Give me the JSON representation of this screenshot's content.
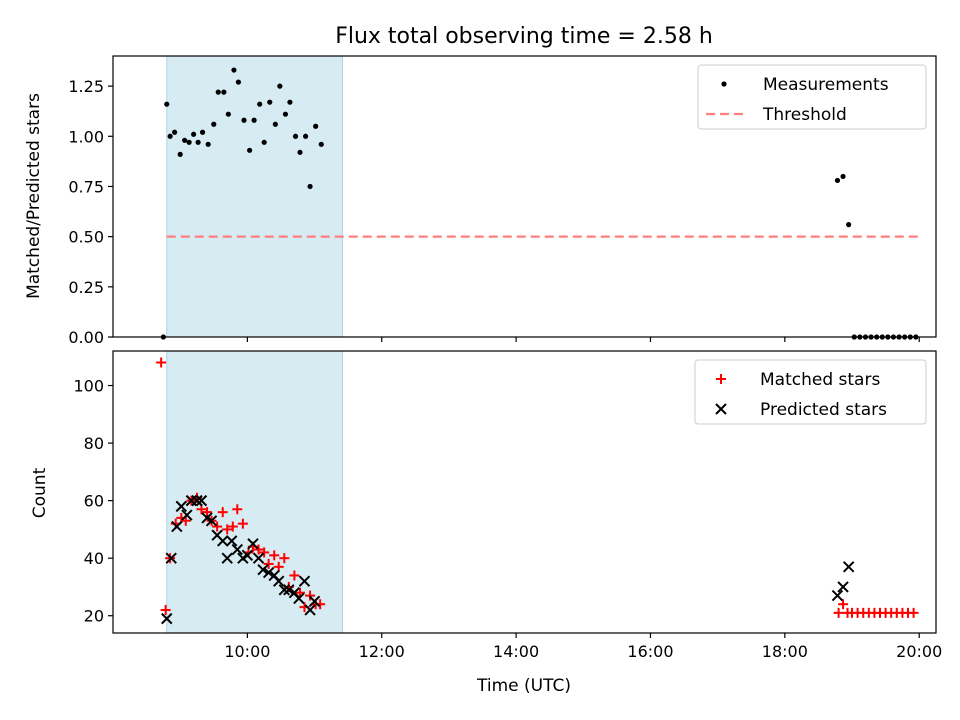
{
  "figure": {
    "title": "Flux total observing time = 2.58 h",
    "shaded_interval": {
      "start": "08:48",
      "end": "11:25",
      "color": "#add8e6"
    }
  },
  "chart_data": [
    {
      "type": "scatter",
      "ylabel": "Matched/Predicted stars",
      "xlabel": "",
      "ylim": [
        0,
        1.4
      ],
      "yticks": [
        0,
        0.25,
        0.5,
        0.75,
        1.0,
        1.25
      ],
      "ytick_labels": [
        "0.00",
        "0.25",
        "0.50",
        "0.75",
        "1.00",
        "1.25"
      ],
      "xticks": [
        "10:00",
        "12:00",
        "14:00",
        "16:00",
        "18:00",
        "20:00"
      ],
      "xtick_labels_visible": false,
      "legend_position": "top-right",
      "series": [
        {
          "name": "Measurements",
          "marker": "dot",
          "color": "#000000",
          "points": [
            [
              "08:45",
              0.0
            ],
            [
              "08:48",
              1.16
            ],
            [
              "08:51",
              1.0
            ],
            [
              "08:55",
              1.02
            ],
            [
              "09:00",
              0.91
            ],
            [
              "09:04",
              0.98
            ],
            [
              "09:08",
              0.97
            ],
            [
              "09:12",
              1.01
            ],
            [
              "09:16",
              0.97
            ],
            [
              "09:20",
              1.02
            ],
            [
              "09:25",
              0.96
            ],
            [
              "09:30",
              1.06
            ],
            [
              "09:34",
              1.22
            ],
            [
              "09:39",
              1.22
            ],
            [
              "09:43",
              1.11
            ],
            [
              "09:48",
              1.33
            ],
            [
              "09:52",
              1.27
            ],
            [
              "09:57",
              1.08
            ],
            [
              "10:02",
              0.93
            ],
            [
              "10:06",
              1.08
            ],
            [
              "10:11",
              1.16
            ],
            [
              "10:15",
              0.97
            ],
            [
              "10:20",
              1.17
            ],
            [
              "10:25",
              1.06
            ],
            [
              "10:29",
              1.25
            ],
            [
              "10:34",
              1.11
            ],
            [
              "10:38",
              1.17
            ],
            [
              "10:43",
              1.0
            ],
            [
              "10:47",
              0.92
            ],
            [
              "10:52",
              1.0
            ],
            [
              "10:56",
              0.75
            ],
            [
              "11:01",
              1.05
            ],
            [
              "11:06",
              0.96
            ],
            [
              "18:47",
              0.78
            ],
            [
              "18:52",
              0.8
            ],
            [
              "18:57",
              0.56
            ],
            [
              "19:02",
              0.0
            ],
            [
              "19:07",
              0.0
            ],
            [
              "19:12",
              0.0
            ],
            [
              "19:17",
              0.0
            ],
            [
              "19:22",
              0.0
            ],
            [
              "19:27",
              0.0
            ],
            [
              "19:32",
              0.0
            ],
            [
              "19:37",
              0.0
            ],
            [
              "19:42",
              0.0
            ],
            [
              "19:47",
              0.0
            ],
            [
              "19:52",
              0.0
            ],
            [
              "19:57",
              0.0
            ]
          ]
        },
        {
          "name": "Threshold",
          "marker": "dashed-line",
          "color": "#ff7f7f",
          "points": [
            [
              "08:48",
              0.5
            ],
            [
              "20:00",
              0.5
            ]
          ]
        }
      ]
    },
    {
      "type": "scatter",
      "ylabel": "Count",
      "xlabel": "Time (UTC)",
      "ylim": [
        14,
        112
      ],
      "yticks": [
        20,
        40,
        60,
        80,
        100
      ],
      "ytick_labels": [
        "20",
        "40",
        "60",
        "80",
        "100"
      ],
      "xticks": [
        "10:00",
        "12:00",
        "14:00",
        "16:00",
        "18:00",
        "20:00"
      ],
      "xtick_labels_visible": true,
      "legend_position": "top-right",
      "series": [
        {
          "name": "Matched stars",
          "marker": "plus",
          "color": "#ff0000",
          "points": [
            [
              "08:43",
              108
            ],
            [
              "08:47",
              22
            ],
            [
              "08:51",
              40
            ],
            [
              "08:56",
              52
            ],
            [
              "09:01",
              54
            ],
            [
              "09:05",
              53
            ],
            [
              "09:10",
              60
            ],
            [
              "09:15",
              61
            ],
            [
              "09:19",
              57
            ],
            [
              "09:24",
              56
            ],
            [
              "09:28",
              53
            ],
            [
              "09:33",
              51
            ],
            [
              "09:38",
              56
            ],
            [
              "09:42",
              50
            ],
            [
              "09:47",
              51
            ],
            [
              "09:51",
              57
            ],
            [
              "09:56",
              52
            ],
            [
              "10:01",
              42
            ],
            [
              "10:05",
              44
            ],
            [
              "10:10",
              43
            ],
            [
              "10:15",
              42
            ],
            [
              "10:19",
              38
            ],
            [
              "10:24",
              41
            ],
            [
              "10:28",
              37
            ],
            [
              "10:33",
              40
            ],
            [
              "10:37",
              30
            ],
            [
              "10:42",
              34
            ],
            [
              "10:47",
              28
            ],
            [
              "10:51",
              23
            ],
            [
              "10:56",
              27
            ],
            [
              "11:01",
              24
            ],
            [
              "11:05",
              24
            ],
            [
              "18:48",
              21
            ],
            [
              "18:52",
              24
            ],
            [
              "18:56",
              21
            ],
            [
              "19:00",
              21
            ],
            [
              "19:05",
              21
            ],
            [
              "19:10",
              21
            ],
            [
              "19:15",
              21
            ],
            [
              "19:20",
              21
            ],
            [
              "19:25",
              21
            ],
            [
              "19:30",
              21
            ],
            [
              "19:35",
              21
            ],
            [
              "19:40",
              21
            ],
            [
              "19:45",
              21
            ],
            [
              "19:50",
              21
            ],
            [
              "19:55",
              21
            ]
          ]
        },
        {
          "name": "Predicted stars",
          "marker": "x",
          "color": "#000000",
          "points": [
            [
              "08:48",
              19
            ],
            [
              "08:52",
              40
            ],
            [
              "08:57",
              51
            ],
            [
              "09:01",
              58
            ],
            [
              "09:06",
              55
            ],
            [
              "09:10",
              60
            ],
            [
              "09:15",
              60
            ],
            [
              "09:19",
              60
            ],
            [
              "09:24",
              54
            ],
            [
              "09:28",
              53
            ],
            [
              "09:33",
              48
            ],
            [
              "09:38",
              46
            ],
            [
              "09:42",
              40
            ],
            [
              "09:46",
              46
            ],
            [
              "09:51",
              43
            ],
            [
              "09:56",
              40
            ],
            [
              "10:00",
              41
            ],
            [
              "10:05",
              45
            ],
            [
              "10:10",
              40
            ],
            [
              "10:14",
              36
            ],
            [
              "10:19",
              35
            ],
            [
              "10:24",
              34
            ],
            [
              "10:28",
              32
            ],
            [
              "10:33",
              29
            ],
            [
              "10:37",
              29
            ],
            [
              "10:42",
              28
            ],
            [
              "10:46",
              26
            ],
            [
              "10:51",
              32
            ],
            [
              "10:56",
              22
            ],
            [
              "11:00",
              25
            ],
            [
              "18:47",
              27
            ],
            [
              "18:52",
              30
            ],
            [
              "18:57",
              37
            ]
          ]
        }
      ]
    }
  ]
}
